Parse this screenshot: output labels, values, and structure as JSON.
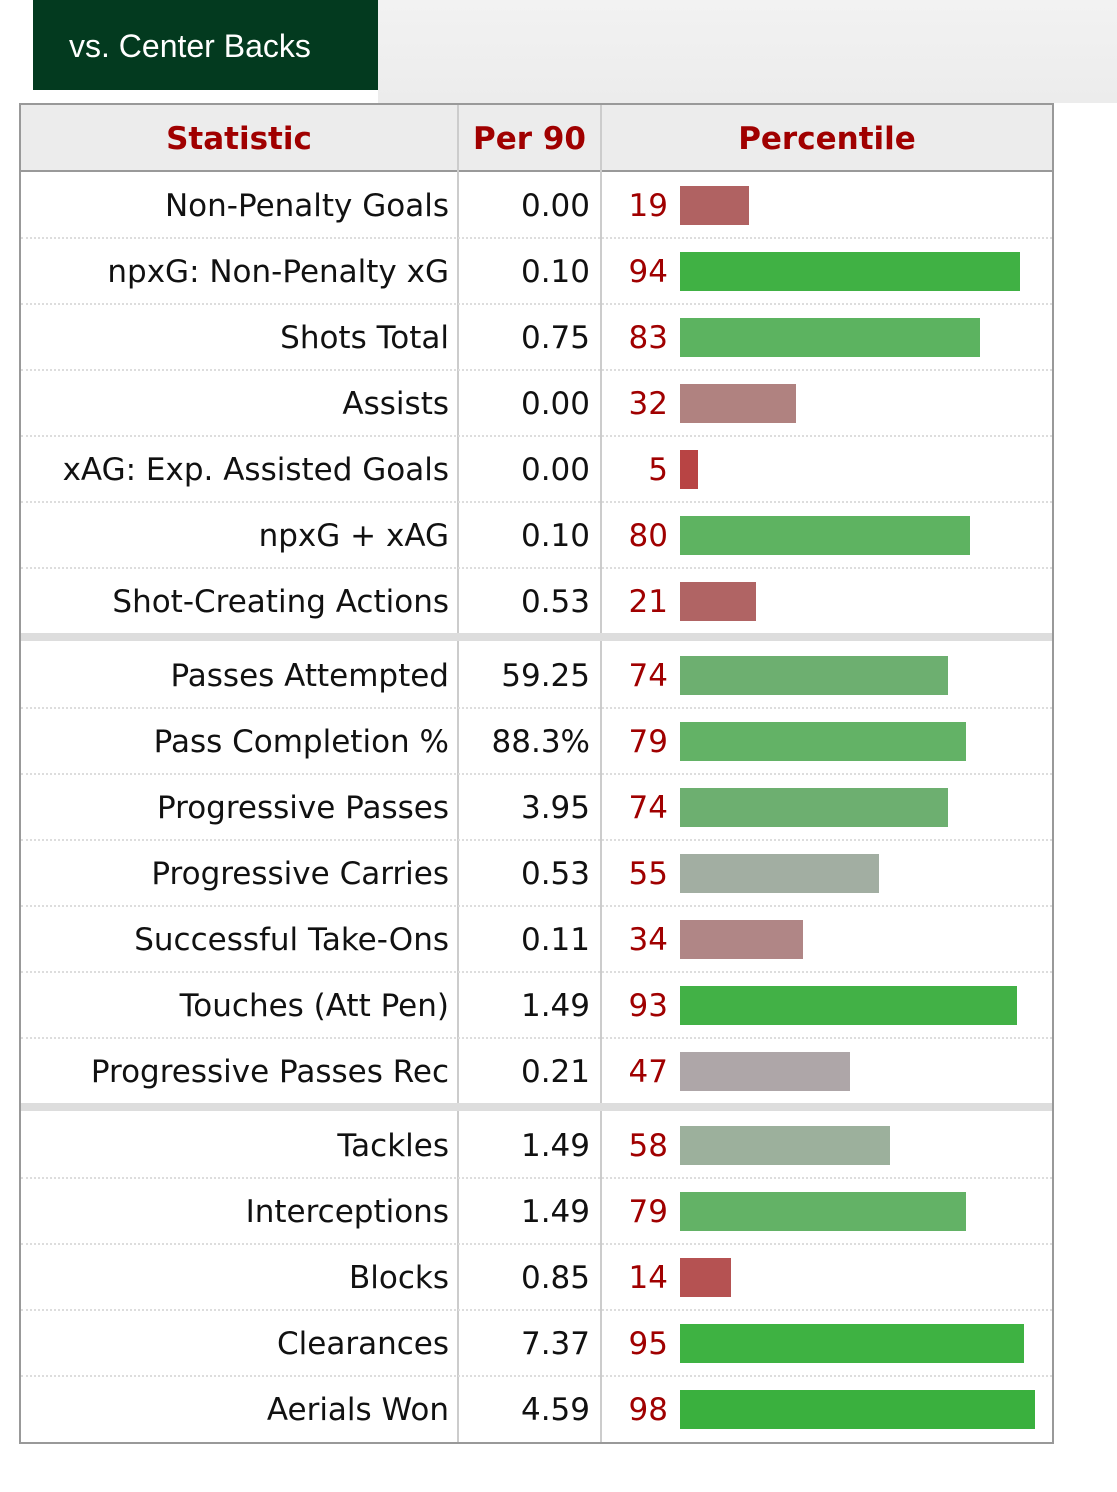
{
  "tab": "vs. Center Backs",
  "table": {
    "columns": [
      "Statistic",
      "Per 90",
      "Percentile"
    ],
    "sections": [
      [
        {
          "stat": "Non-Penalty Goals",
          "per90": "0.00",
          "percentile": 19,
          "color": "#b06262"
        },
        {
          "stat": "npxG: Non-Penalty xG",
          "per90": "0.10",
          "percentile": 94,
          "color": "#40b144"
        },
        {
          "stat": "Shots Total",
          "per90": "0.75",
          "percentile": 83,
          "color": "#5cb360"
        },
        {
          "stat": "Assists",
          "per90": "0.00",
          "percentile": 32,
          "color": "#b08280"
        },
        {
          "stat": "xAG: Exp. Assisted Goals",
          "per90": "0.00",
          "percentile": 5,
          "color": "#b84444"
        },
        {
          "stat": "npxG + xAG",
          "per90": "0.10",
          "percentile": 80,
          "color": "#5eb361"
        },
        {
          "stat": "Shot-Creating Actions",
          "per90": "0.53",
          "percentile": 21,
          "color": "#b06464"
        }
      ],
      [
        {
          "stat": "Passes Attempted",
          "per90": "59.25",
          "percentile": 74,
          "color": "#6daf70"
        },
        {
          "stat": "Pass Completion %",
          "per90": "88.3%",
          "percentile": 79,
          "color": "#63b266"
        },
        {
          "stat": "Progressive Passes",
          "per90": "3.95",
          "percentile": 74,
          "color": "#6daf70"
        },
        {
          "stat": "Progressive Carries",
          "per90": "0.53",
          "percentile": 55,
          "color": "#a2aea2"
        },
        {
          "stat": "Successful Take-Ons",
          "per90": "0.11",
          "percentile": 34,
          "color": "#b08686"
        },
        {
          "stat": "Touches (Att Pen)",
          "per90": "1.49",
          "percentile": 93,
          "color": "#42b146"
        },
        {
          "stat": "Progressive Passes Rec",
          "per90": "0.21",
          "percentile": 47,
          "color": "#aea6a8"
        }
      ],
      [
        {
          "stat": "Tackles",
          "per90": "1.49",
          "percentile": 58,
          "color": "#9cb09c"
        },
        {
          "stat": "Interceptions",
          "per90": "1.49",
          "percentile": 79,
          "color": "#63b266"
        },
        {
          "stat": "Blocks",
          "per90": "0.85",
          "percentile": 14,
          "color": "#b55252"
        },
        {
          "stat": "Clearances",
          "per90": "7.37",
          "percentile": 95,
          "color": "#3eb242"
        },
        {
          "stat": "Aerials Won",
          "per90": "4.59",
          "percentile": 98,
          "color": "#3ab03e"
        }
      ]
    ]
  }
}
